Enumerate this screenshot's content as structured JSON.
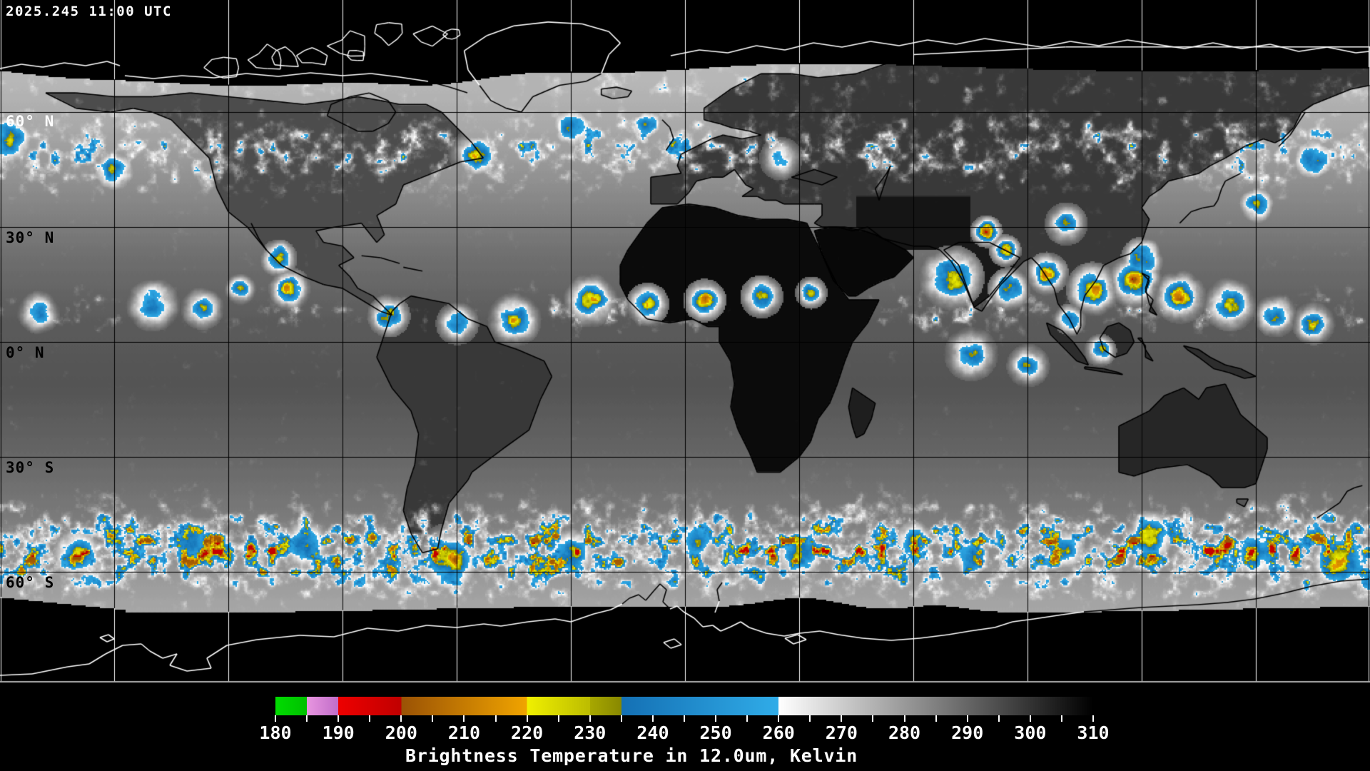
{
  "timestamp": "2025.245 11:00 UTC",
  "map": {
    "latitude_labels": [
      {
        "text": "60° N",
        "color": "#ffffff"
      },
      {
        "text": "30° N",
        "color": "#000000"
      },
      {
        "text": "0° N",
        "color": "#000000"
      },
      {
        "text": "30° S",
        "color": "#000000"
      },
      {
        "text": "60° S",
        "color": "#000000"
      }
    ],
    "grid": {
      "longitude_step_deg": 30,
      "latitude_step_deg": 30
    }
  },
  "colorbar": {
    "title": "Brightness Temperature in 12.0um, Kelvin",
    "min": 180,
    "max": 310,
    "major_step": 10,
    "minor_step": 5,
    "tick_labels": [
      "180",
      "190",
      "200",
      "210",
      "220",
      "230",
      "240",
      "250",
      "260",
      "270",
      "280",
      "290",
      "300",
      "310"
    ],
    "segments": [
      {
        "from": 180,
        "to": 185,
        "start": "#00dc00",
        "end": "#00c000"
      },
      {
        "from": 185,
        "to": 190,
        "start": "#e896e0",
        "end": "#c06cc8"
      },
      {
        "from": 190,
        "to": 200,
        "start": "#ee0000",
        "end": "#c00000"
      },
      {
        "from": 200,
        "to": 220,
        "start": "#9a5205",
        "end": "#f0a400"
      },
      {
        "from": 220,
        "to": 230,
        "start": "#f0f000",
        "end": "#bcbc00"
      },
      {
        "from": 230,
        "to": 235,
        "start": "#a8a800",
        "end": "#888800"
      },
      {
        "from": 235,
        "to": 260,
        "start": "#1470b4",
        "end": "#30ace8"
      },
      {
        "from": 260,
        "to": 310,
        "start": "#ffffff",
        "end": "#000000"
      }
    ]
  },
  "colors": {
    "background": "#000000",
    "grid_on_data": "#000000",
    "grid_on_void": "#ffffff",
    "coastline_on_data": "#000000",
    "coastline_on_void": "#ffffff",
    "frame_line": "#b0b0b0",
    "tick_color": "#ffffff",
    "label_color": "#ffffff"
  }
}
